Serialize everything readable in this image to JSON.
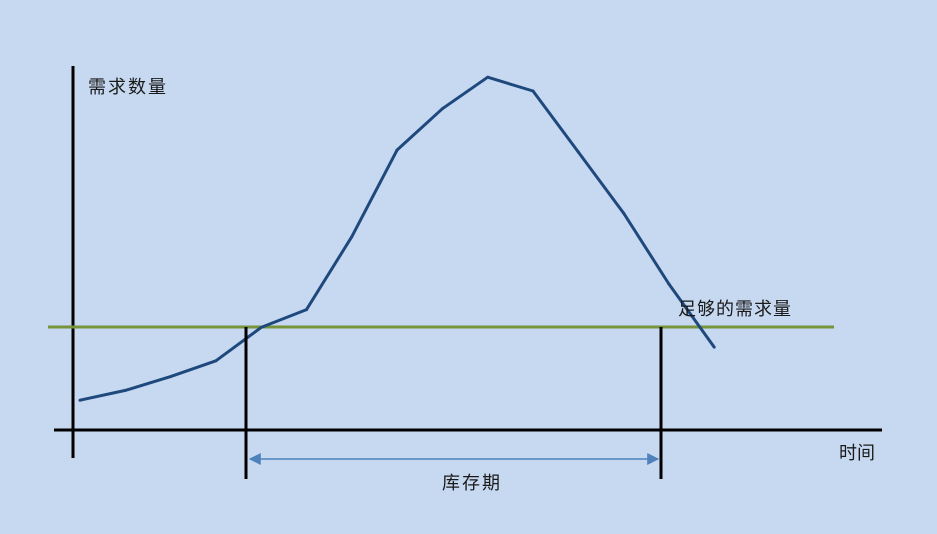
{
  "labels": {
    "y_axis": "需求数量",
    "x_axis": "时间",
    "threshold": "足够的需求量",
    "span": "库存期"
  },
  "chart_data": {
    "type": "line",
    "title": "",
    "xlabel": "时间",
    "ylabel": "需求数量",
    "series": [
      {
        "values": [
          0.08,
          0.13,
          0.2,
          0.28,
          0.45,
          0.54,
          0.91,
          1.35,
          1.56,
          1.72,
          1.65,
          1.34,
          1.03,
          0.67,
          0.35
        ]
      }
    ],
    "threshold_label": "足够的需求量",
    "threshold": 0.45,
    "span_label": "库存期",
    "colors": {
      "curve": "#1f497d",
      "threshold": "#77933c",
      "axis": "#000000",
      "span_arrow": "#4f81bd",
      "background": "#c6d9f1"
    }
  }
}
